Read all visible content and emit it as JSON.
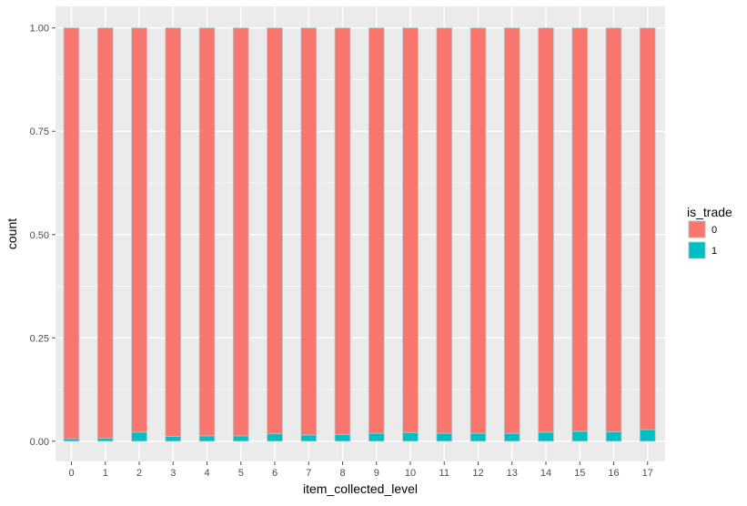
{
  "chart_data": {
    "type": "bar",
    "stacked": true,
    "title": "",
    "xlabel": "item_collected_level",
    "ylabel": "count",
    "ylim": [
      0,
      1
    ],
    "yticks": [
      "0.00",
      "0.25",
      "0.50",
      "0.75",
      "1.00"
    ],
    "categories": [
      "0",
      "1",
      "2",
      "3",
      "4",
      "5",
      "6",
      "7",
      "8",
      "9",
      "10",
      "11",
      "12",
      "13",
      "14",
      "15",
      "16",
      "17"
    ],
    "series": [
      {
        "name": "0",
        "color": "#F8766D",
        "values": [
          0.994,
          0.993,
          0.978,
          0.988,
          0.987,
          0.987,
          0.982,
          0.985,
          0.984,
          0.981,
          0.979,
          0.981,
          0.981,
          0.981,
          0.978,
          0.976,
          0.977,
          0.972
        ]
      },
      {
        "name": "1",
        "color": "#00BFC4",
        "values": [
          0.006,
          0.007,
          0.022,
          0.012,
          0.013,
          0.013,
          0.018,
          0.015,
          0.016,
          0.019,
          0.021,
          0.019,
          0.019,
          0.019,
          0.022,
          0.024,
          0.023,
          0.028
        ]
      }
    ],
    "grid": true,
    "legend": {
      "title": "is_trade",
      "position": "right"
    }
  }
}
